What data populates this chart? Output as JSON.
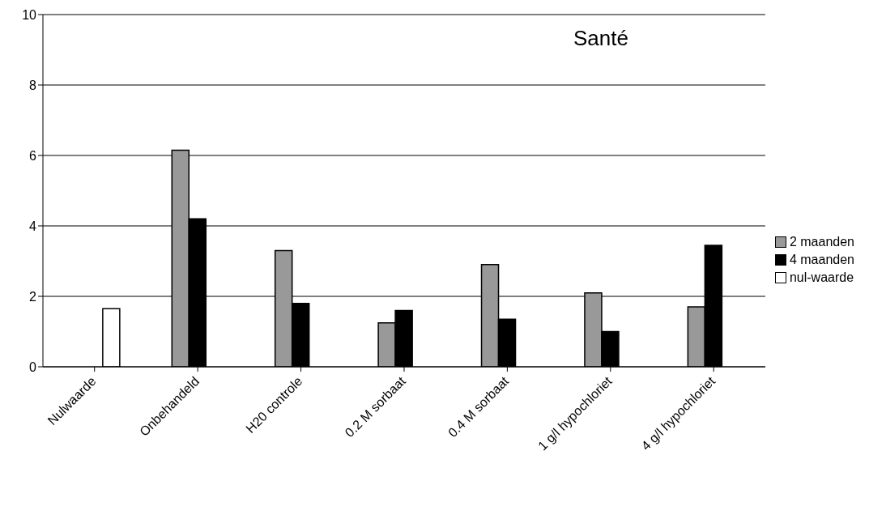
{
  "chart_data": {
    "type": "bar",
    "title": "Santé",
    "categories": [
      "Nulwaarde",
      "Onbehandeld",
      "H20 controle",
      "0.2 M sorbaat",
      "0.4 M sorbaat",
      "1 g/l hypochloriet",
      "4 g/l hypochloriet"
    ],
    "series": [
      {
        "name": "2 maanden",
        "color": "#999999",
        "values": [
          null,
          6.15,
          3.3,
          1.25,
          2.9,
          2.1,
          1.7
        ]
      },
      {
        "name": "4 maanden",
        "color": "#000000",
        "values": [
          null,
          4.2,
          1.8,
          1.6,
          1.35,
          1.0,
          3.45
        ]
      },
      {
        "name": "nul-waarde",
        "color": "#ffffff",
        "values": [
          1.65,
          null,
          null,
          null,
          null,
          null,
          null
        ]
      }
    ],
    "ylim": [
      0,
      10
    ],
    "yticks": [
      0,
      2,
      4,
      6,
      8,
      10
    ],
    "grid": "y",
    "legend": "right"
  }
}
